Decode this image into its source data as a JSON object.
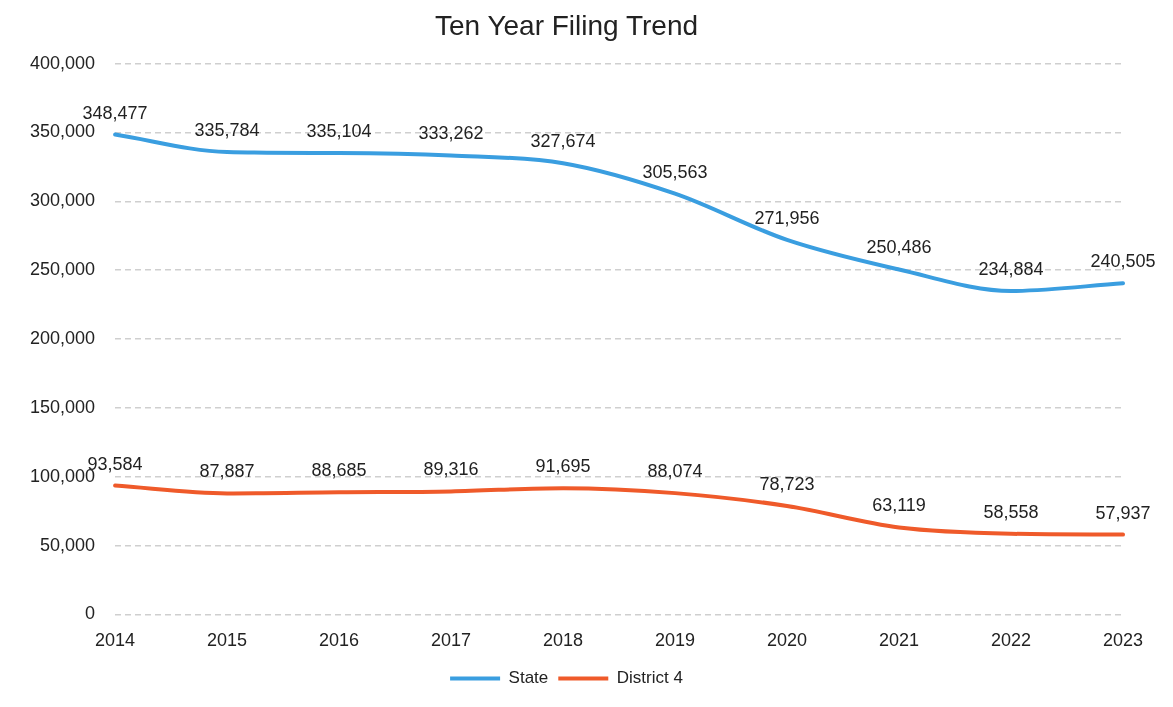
{
  "chart_data": {
    "type": "line",
    "title": "Ten Year Filing Trend",
    "categories": [
      "2014",
      "2015",
      "2016",
      "2017",
      "2018",
      "2019",
      "2020",
      "2021",
      "2022",
      "2023"
    ],
    "series": [
      {
        "name": "State",
        "color": "#3a9ee0",
        "values": [
          348477,
          335784,
          335104,
          333262,
          327674,
          305563,
          271956,
          250486,
          234884,
          240505
        ],
        "value_labels": [
          "348,477",
          "335,784",
          "335,104",
          "333,262",
          "327,674",
          "305,563",
          "271,956",
          "250,486",
          "234,884",
          "240,505"
        ]
      },
      {
        "name": "District 4",
        "color": "#ef5a2a",
        "values": [
          93584,
          87887,
          88685,
          89316,
          91695,
          88074,
          78723,
          63119,
          58558,
          57937
        ],
        "value_labels": [
          "93,584",
          "87,887",
          "88,685",
          "89,316",
          "91,695",
          "88,074",
          "78,723",
          "63,119",
          "58,558",
          "57,937"
        ]
      }
    ],
    "ylim": [
      0,
      400000
    ],
    "yticks": [
      0,
      {
        "value": 50000,
        "label": "50,000"
      },
      {
        "value": 100000,
        "label": "100,000"
      },
      {
        "value": 150000,
        "label": "150,000"
      },
      {
        "value": 200000,
        "label": "200,000"
      },
      {
        "value": 250000,
        "label": "250,000"
      },
      {
        "value": 300000,
        "label": "300,000"
      },
      {
        "value": 350000,
        "label": "350,000"
      },
      {
        "value": 400000,
        "label": "400,000"
      }
    ],
    "grid": "y",
    "legend": "bottom",
    "marker": "none",
    "line_style": "solid"
  }
}
